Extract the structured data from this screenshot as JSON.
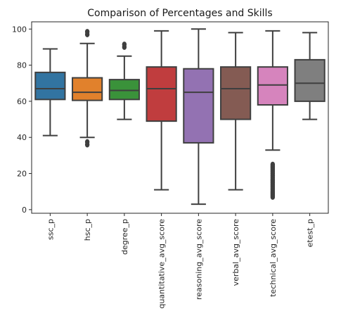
{
  "chart_data": {
    "type": "box",
    "title": "Comparison of Percentages and Skills",
    "xlabel": "",
    "ylabel": "",
    "ylim": [
      -2,
      104
    ],
    "yticks": [
      0,
      20,
      40,
      60,
      80,
      100
    ],
    "grid": false,
    "categories": [
      "ssc_p",
      "hsc_p",
      "degree_p",
      "quantitative_avg_score",
      "reasoning_avg_score",
      "verbal_avg_score",
      "technical_avg_score",
      "etest_p"
    ],
    "boxes": [
      {
        "category": "ssc_p",
        "whisker_low": 41,
        "q1": 61,
        "median": 67,
        "q3": 76,
        "whisker_high": 89,
        "outliers": [],
        "color": "#3274a1"
      },
      {
        "category": "hsc_p",
        "whisker_low": 40,
        "q1": 60.5,
        "median": 65,
        "q3": 73,
        "whisker_high": 92,
        "outliers": [
          36,
          37.5,
          97,
          98.5
        ],
        "color": "#e1812c"
      },
      {
        "category": "degree_p",
        "whisker_low": 50,
        "q1": 61,
        "median": 66,
        "q3": 72,
        "whisker_high": 85,
        "outliers": [
          90,
          91.5
        ],
        "color": "#3a923a"
      },
      {
        "category": "quantitative_avg_score",
        "whisker_low": 11,
        "q1": 49,
        "median": 67,
        "q3": 79,
        "whisker_high": 99,
        "outliers": [],
        "color": "#c03d3e"
      },
      {
        "category": "reasoning_avg_score",
        "whisker_low": 3,
        "q1": 37,
        "median": 65,
        "q3": 78,
        "whisker_high": 100,
        "outliers": [],
        "color": "#9372b2"
      },
      {
        "category": "verbal_avg_score",
        "whisker_low": 11,
        "q1": 50,
        "median": 67,
        "q3": 79,
        "whisker_high": 98,
        "outliers": [],
        "color": "#845b53"
      },
      {
        "category": "technical_avg_score",
        "whisker_low": 33,
        "q1": 58,
        "median": 69,
        "q3": 79,
        "whisker_high": 99,
        "outliers": [
          7,
          8,
          9,
          10,
          11,
          12,
          13,
          14,
          15,
          16,
          17,
          18,
          19,
          20,
          21,
          22,
          23,
          24,
          25
        ],
        "color": "#d684bd"
      },
      {
        "category": "etest_p",
        "whisker_low": 50,
        "q1": 60,
        "median": 70,
        "q3": 83,
        "whisker_high": 98,
        "outliers": [],
        "color": "#7f7f7f"
      }
    ]
  }
}
